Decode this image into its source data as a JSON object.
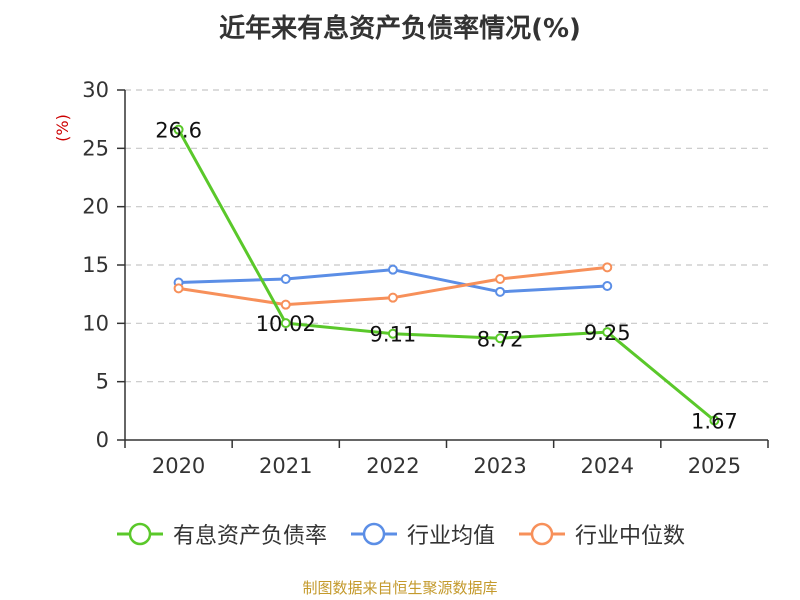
{
  "title": "近年来有息资产负债率情况(%)",
  "source_note": "制图数据来自恒生聚源数据库",
  "chart_data": {
    "type": "line",
    "title": "近年来有息资产负债率情况(%)",
    "ylabel": "(%)",
    "xlabel": "",
    "categories": [
      "2020",
      "2021",
      "2022",
      "2023",
      "2024",
      "2025"
    ],
    "ylim": [
      0,
      30
    ],
    "yticks": [
      0,
      5,
      10,
      15,
      20,
      25,
      30
    ],
    "grid": "horizontal-dashed",
    "legend_position": "bottom",
    "series": [
      {
        "name": "有息资产负债率",
        "color": "#5ac82a",
        "values": [
          26.6,
          10.02,
          9.11,
          8.72,
          9.25,
          1.67
        ],
        "data_labels": [
          "26.6",
          "10.02",
          "9.11",
          "8.72",
          "9.25",
          "1.67"
        ]
      },
      {
        "name": "行业均值",
        "color": "#5b8ee6",
        "values": [
          13.5,
          13.8,
          14.6,
          12.7,
          13.2,
          null
        ]
      },
      {
        "name": "行业中位数",
        "color": "#f7905a",
        "values": [
          13.0,
          11.6,
          12.2,
          13.8,
          14.8,
          null
        ]
      }
    ]
  }
}
